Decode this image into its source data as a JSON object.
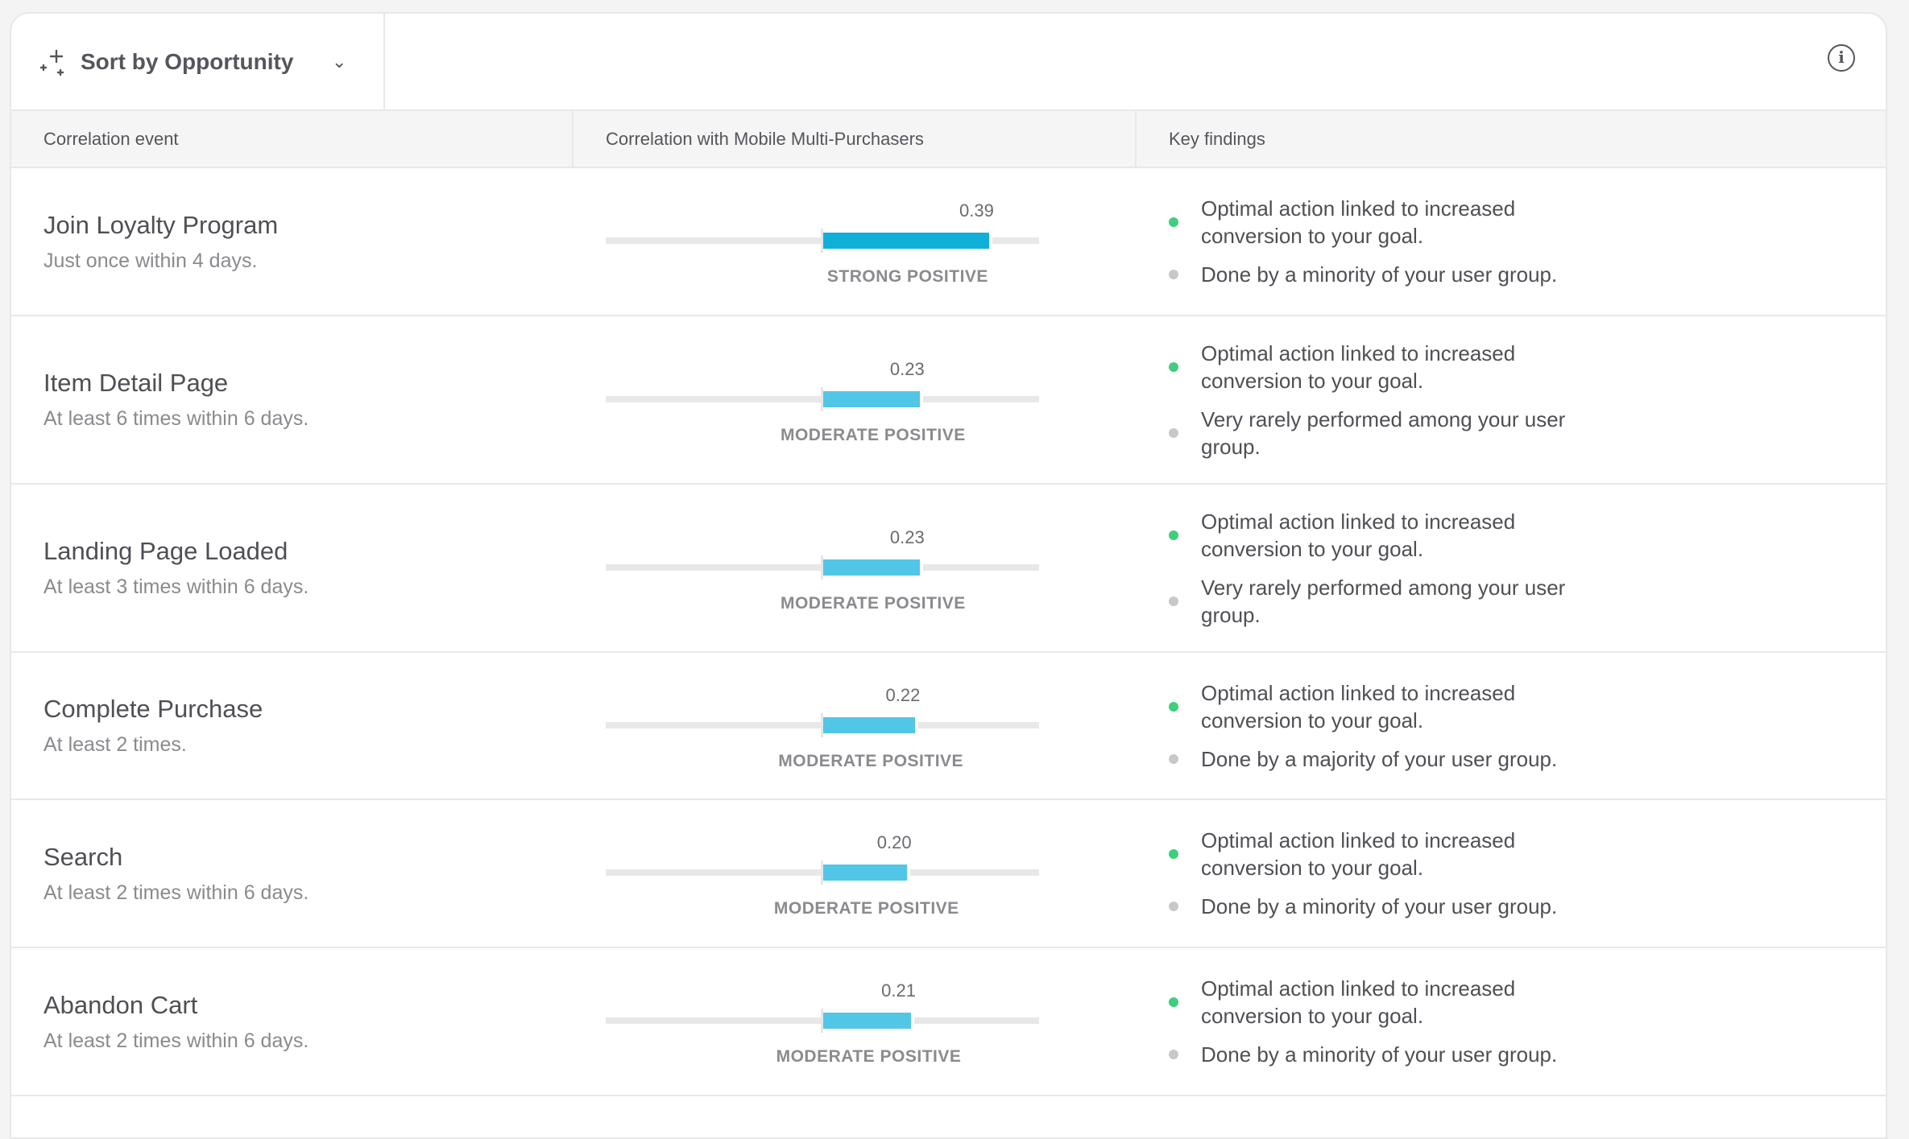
{
  "toolbar": {
    "sort_label": "Sort by Opportunity",
    "sort_icon": "sparkle-icon",
    "info_icon": "info-icon"
  },
  "columns": {
    "event": "Correlation event",
    "correlation": "Correlation with Mobile Multi-Purchasers",
    "findings": "Key findings"
  },
  "colors": {
    "strong": "#0fb0d8",
    "moderate": "#52c6e6",
    "positive_dot": "#3ecf7c",
    "neutral_dot": "#c8c8c8"
  },
  "rows": [
    {
      "event": "Join Loyalty Program",
      "frequency": "Just once within 4 days.",
      "value": 0.39,
      "value_label": "0.39",
      "strength": "STRONG POSITIVE",
      "level": "strong",
      "findings": [
        {
          "text": "Optimal action linked to increased conversion to your goal.",
          "type": "positive"
        },
        {
          "text": "Done by a minority of your user group.",
          "type": "neutral"
        }
      ]
    },
    {
      "event": "Item Detail Page",
      "frequency": "At least 6 times within 6 days.",
      "value": 0.23,
      "value_label": "0.23",
      "strength": "MODERATE POSITIVE",
      "level": "moderate",
      "findings": [
        {
          "text": "Optimal action linked to increased conversion to your goal.",
          "type": "positive"
        },
        {
          "text": "Very rarely performed among your user group.",
          "type": "neutral"
        }
      ]
    },
    {
      "event": "Landing Page Loaded",
      "frequency": "At least 3 times within 6 days.",
      "value": 0.23,
      "value_label": "0.23",
      "strength": "MODERATE POSITIVE",
      "level": "moderate",
      "findings": [
        {
          "text": "Optimal action linked to increased conversion to your goal.",
          "type": "positive"
        },
        {
          "text": "Very rarely performed among your user group.",
          "type": "neutral"
        }
      ]
    },
    {
      "event": "Complete Purchase",
      "frequency": "At least 2 times.",
      "value": 0.22,
      "value_label": "0.22",
      "strength": "MODERATE POSITIVE",
      "level": "moderate",
      "findings": [
        {
          "text": "Optimal action linked to increased conversion to your goal.",
          "type": "positive"
        },
        {
          "text": "Done by a majority of your user group.",
          "type": "neutral"
        }
      ]
    },
    {
      "event": "Search",
      "frequency": "At least 2 times within 6 days.",
      "value": 0.2,
      "value_label": "0.20",
      "strength": "MODERATE POSITIVE",
      "level": "moderate",
      "findings": [
        {
          "text": "Optimal action linked to increased conversion to your goal.",
          "type": "positive"
        },
        {
          "text": "Done by a minority of your user group.",
          "type": "neutral"
        }
      ]
    },
    {
      "event": "Abandon Cart",
      "frequency": "At least 2 times within 6 days.",
      "value": 0.21,
      "value_label": "0.21",
      "strength": "MODERATE POSITIVE",
      "level": "moderate",
      "findings": [
        {
          "text": "Optimal action linked to increased conversion to your goal.",
          "type": "positive"
        },
        {
          "text": "Done by a minority of your user group.",
          "type": "neutral"
        }
      ]
    }
  ]
}
